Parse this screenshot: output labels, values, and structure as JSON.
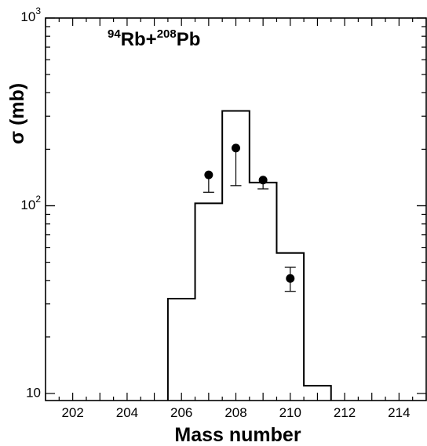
{
  "chart_data": {
    "type": "scatter",
    "title_parts": [
      "94",
      "Rb+",
      "208",
      "Pb"
    ],
    "xlabel": "Mass number",
    "ylabel": "σ (mb)",
    "x_ticks": [
      "202",
      "204",
      "206",
      "208",
      "210",
      "212",
      "214"
    ],
    "y_ticks": [
      {
        "base": "10",
        "exp": "3",
        "value": 1000
      },
      {
        "base": "10",
        "exp": "2",
        "value": 100
      },
      {
        "base": "10",
        "exp": "",
        "value": 10
      }
    ],
    "xlim": [
      201,
      215
    ],
    "ylim": [
      9.2,
      1000
    ],
    "y_scale": "log",
    "histogram": {
      "edges": [
        205.5,
        206.5,
        207.5,
        208.5,
        209.5,
        210.5,
        211.5
      ],
      "values": [
        32,
        103,
        320,
        133,
        56,
        11
      ]
    },
    "measured": {
      "x": [
        207,
        208,
        209,
        210
      ],
      "y": [
        146,
        203,
        137,
        41
      ],
      "err_low": [
        118,
        128,
        123,
        35
      ],
      "err_high": [
        146,
        203,
        137,
        47
      ]
    }
  }
}
